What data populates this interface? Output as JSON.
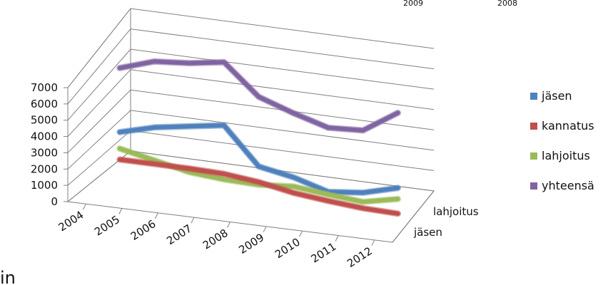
{
  "chart_data": {
    "type": "line",
    "style": "3d-line",
    "title": "",
    "xlabel": "",
    "ylabel": "",
    "ylim": [
      0,
      7000
    ],
    "yticks": [
      "0",
      "1000",
      "2000",
      "3000",
      "4000",
      "5000",
      "6000",
      "7000"
    ],
    "categories": [
      "2004",
      "2005",
      "2006",
      "2007",
      "2008",
      "2009",
      "2010",
      "2011",
      "2012"
    ],
    "depth_labels": [
      "lahjoitus",
      "jäsen"
    ],
    "top_labels": [
      "2009",
      "2008"
    ],
    "grid": true,
    "legend_position": "right",
    "series": [
      {
        "name": "jäsen",
        "color": "#4F81BD",
        "values": [
          2400,
          2900,
          3200,
          3500,
          1500,
          1150,
          600,
          800,
          1300
        ]
      },
      {
        "name": "kannatus",
        "color": "#C0504D",
        "values": [
          900,
          900,
          900,
          850,
          650,
          300,
          100,
          -50,
          -100
        ]
      },
      {
        "name": "lahjoitus",
        "color": "#9BBB59",
        "values": [
          1500,
          1100,
          700,
          550,
          500,
          650,
          450,
          300,
          700
        ]
      },
      {
        "name": "yhteensä",
        "color": "#8064A2",
        "values": [
          5900,
          6500,
          6650,
          6950,
          5300,
          4650,
          4100,
          4200,
          5400
        ]
      }
    ]
  },
  "corner_text": "in"
}
